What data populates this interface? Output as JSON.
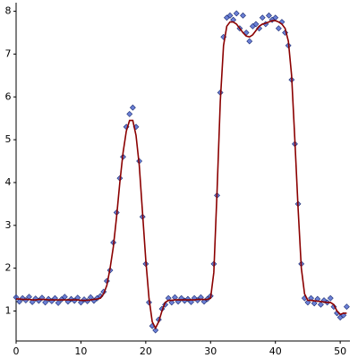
{
  "chart_data": {
    "type": "scatter",
    "x": [
      0,
      0.5,
      1,
      1.5,
      2,
      2.5,
      3,
      3.5,
      4,
      4.5,
      5,
      5.5,
      6,
      6.5,
      7,
      7.5,
      8,
      8.5,
      9,
      9.5,
      10,
      10.5,
      11,
      11.5,
      12,
      12.5,
      13,
      13.5,
      14,
      14.5,
      15,
      15.5,
      16,
      16.5,
      17,
      17.5,
      18,
      18.5,
      19,
      19.5,
      20,
      20.5,
      21,
      21.5,
      22,
      22.5,
      23,
      23.5,
      24,
      24.5,
      25,
      25.5,
      26,
      26.5,
      27,
      27.5,
      28,
      28.5,
      29,
      29.5,
      30,
      30.5,
      31,
      31.5,
      32,
      32.5,
      33,
      33.5,
      34,
      34.5,
      35,
      35.5,
      36,
      36.5,
      37,
      37.5,
      38,
      38.5,
      39,
      39.5,
      40,
      40.5,
      41,
      41.5,
      42,
      42.5,
      43,
      43.5,
      44,
      44.5,
      45,
      45.5,
      46,
      46.5,
      47,
      47.5,
      48,
      48.5,
      49,
      49.5,
      50,
      50.5,
      51
    ],
    "series": [
      {
        "type": "scatter",
        "color": "#3a56c8",
        "values": [
          1.32,
          1.22,
          1.3,
          1.25,
          1.33,
          1.21,
          1.29,
          1.24,
          1.31,
          1.2,
          1.28,
          1.23,
          1.3,
          1.19,
          1.27,
          1.33,
          1.22,
          1.28,
          1.24,
          1.31,
          1.2,
          1.27,
          1.23,
          1.32,
          1.24,
          1.3,
          1.35,
          1.45,
          1.7,
          1.95,
          2.6,
          3.3,
          4.1,
          4.6,
          5.3,
          5.6,
          5.75,
          5.3,
          4.5,
          3.2,
          2.1,
          1.2,
          0.65,
          0.55,
          0.8,
          1.05,
          1.15,
          1.3,
          1.2,
          1.32,
          1.22,
          1.3,
          1.24,
          1.28,
          1.21,
          1.3,
          1.25,
          1.32,
          1.22,
          1.28,
          1.35,
          2.1,
          3.7,
          6.1,
          7.4,
          7.85,
          7.9,
          7.8,
          7.95,
          7.6,
          7.9,
          7.5,
          7.3,
          7.65,
          7.7,
          7.6,
          7.85,
          7.7,
          7.9,
          7.8,
          7.85,
          7.6,
          7.75,
          7.5,
          7.2,
          6.4,
          4.9,
          3.5,
          2.1,
          1.3,
          1.2,
          1.3,
          1.18,
          1.28,
          1.15,
          1.25,
          1.2,
          1.3,
          1.1,
          0.95,
          0.85,
          0.9,
          1.1
        ]
      },
      {
        "type": "line",
        "color": "#8b0000",
        "values": [
          1.28,
          1.28,
          1.27,
          1.27,
          1.27,
          1.26,
          1.26,
          1.27,
          1.27,
          1.27,
          1.26,
          1.26,
          1.26,
          1.26,
          1.26,
          1.26,
          1.26,
          1.26,
          1.26,
          1.26,
          1.25,
          1.25,
          1.25,
          1.26,
          1.27,
          1.28,
          1.3,
          1.4,
          1.6,
          2.0,
          2.5,
          3.2,
          4.0,
          4.7,
          5.2,
          5.45,
          5.45,
          5.1,
          4.4,
          3.3,
          2.2,
          1.3,
          0.75,
          0.6,
          0.75,
          1.0,
          1.2,
          1.25,
          1.25,
          1.26,
          1.26,
          1.26,
          1.26,
          1.26,
          1.26,
          1.26,
          1.27,
          1.27,
          1.27,
          1.27,
          1.3,
          1.9,
          3.8,
          5.9,
          7.2,
          7.65,
          7.75,
          7.75,
          7.7,
          7.6,
          7.5,
          7.42,
          7.4,
          7.45,
          7.55,
          7.65,
          7.7,
          7.72,
          7.75,
          7.78,
          7.78,
          7.75,
          7.7,
          7.6,
          7.3,
          6.5,
          5.0,
          3.4,
          2.0,
          1.4,
          1.25,
          1.25,
          1.24,
          1.23,
          1.22,
          1.21,
          1.2,
          1.2,
          1.15,
          1.0,
          0.92,
          0.95,
          0.95
        ]
      }
    ],
    "xlim": [
      0,
      51.5
    ],
    "ylim": [
      0.3,
      8.2
    ],
    "xticks": [
      0,
      10,
      20,
      30,
      40,
      50
    ],
    "yticks": [
      1,
      2,
      3,
      4,
      5,
      6,
      7,
      8
    ],
    "grid": false
  }
}
